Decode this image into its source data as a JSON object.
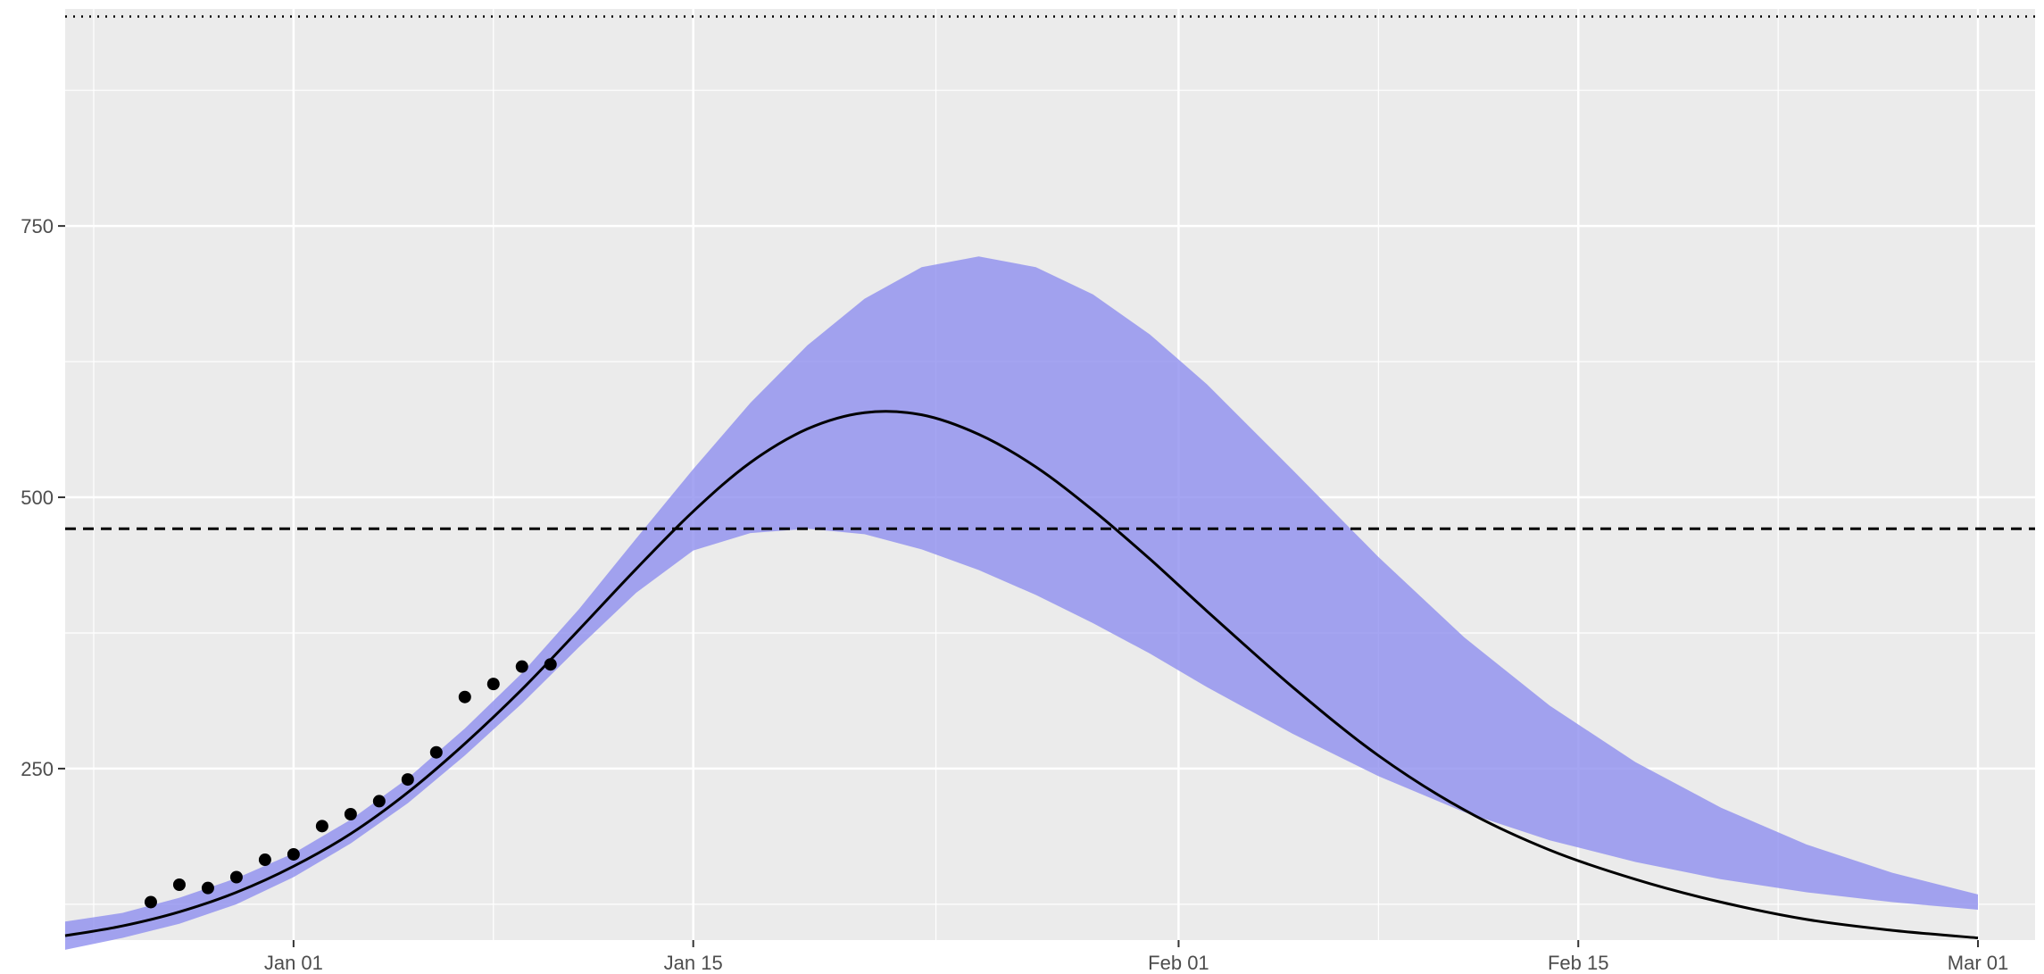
{
  "chart_data": {
    "type": "line",
    "title": "",
    "xlabel": "",
    "ylabel": "",
    "xlim": [
      "2020-12-24",
      "2021-03-03"
    ],
    "ylim": [
      92,
      950
    ],
    "x_ticks": [
      {
        "date": "2021-01-01",
        "label": "Jan 01"
      },
      {
        "date": "2021-01-15",
        "label": "Jan 15"
      },
      {
        "date": "2021-02-01",
        "label": "Feb 01"
      },
      {
        "date": "2021-02-15",
        "label": "Feb 15"
      },
      {
        "date": "2021-03-01",
        "label": "Mar 01"
      }
    ],
    "y_ticks": [
      250,
      500,
      750
    ],
    "y_minor_ticks": [
      125,
      375,
      625,
      875
    ],
    "background_color": "#ebebeb",
    "grid_color": "#ffffff",
    "ribbon_color": "#8f8fef",
    "line_color": "#000000",
    "hline_dashed": 471,
    "hline_dotted": 943,
    "series": [
      {
        "kind": "fitted",
        "points": [
          [
            "2020-12-24",
            96
          ],
          [
            "2020-12-26",
            105
          ],
          [
            "2020-12-28",
            118
          ],
          [
            "2020-12-30",
            136
          ],
          [
            "2021-01-01",
            160
          ],
          [
            "2021-01-03",
            190
          ],
          [
            "2021-01-05",
            228
          ],
          [
            "2021-01-07",
            273
          ],
          [
            "2021-01-09",
            323
          ],
          [
            "2021-01-11",
            378
          ],
          [
            "2021-01-13",
            434
          ],
          [
            "2021-01-15",
            487
          ],
          [
            "2021-01-17",
            532
          ],
          [
            "2021-01-19",
            563
          ],
          [
            "2021-01-21",
            578
          ],
          [
            "2021-01-23",
            576
          ],
          [
            "2021-01-25",
            558
          ],
          [
            "2021-01-27",
            528
          ],
          [
            "2021-01-29",
            488
          ],
          [
            "2021-01-31",
            443
          ],
          [
            "2021-02-02",
            395
          ],
          [
            "2021-02-05",
            325
          ],
          [
            "2021-02-08",
            262
          ],
          [
            "2021-02-11",
            212
          ],
          [
            "2021-02-14",
            175
          ],
          [
            "2021-02-17",
            148
          ],
          [
            "2021-02-20",
            127
          ],
          [
            "2021-02-23",
            111
          ],
          [
            "2021-02-26",
            101
          ],
          [
            "2021-03-01",
            94
          ]
        ]
      },
      {
        "kind": "ribbon",
        "lower": [
          [
            "2020-12-24",
            83
          ],
          [
            "2020-12-26",
            94
          ],
          [
            "2020-12-28",
            107
          ],
          [
            "2020-12-30",
            125
          ],
          [
            "2021-01-01",
            150
          ],
          [
            "2021-01-03",
            181
          ],
          [
            "2021-01-05",
            218
          ],
          [
            "2021-01-07",
            262
          ],
          [
            "2021-01-09",
            310
          ],
          [
            "2021-01-11",
            362
          ],
          [
            "2021-01-13",
            412
          ],
          [
            "2021-01-15",
            451
          ],
          [
            "2021-01-17",
            467
          ],
          [
            "2021-01-19",
            471
          ],
          [
            "2021-01-21",
            466
          ],
          [
            "2021-01-23",
            452
          ],
          [
            "2021-01-25",
            433
          ],
          [
            "2021-01-27",
            410
          ],
          [
            "2021-01-29",
            384
          ],
          [
            "2021-01-31",
            356
          ],
          [
            "2021-02-02",
            325
          ],
          [
            "2021-02-05",
            282
          ],
          [
            "2021-02-08",
            243
          ],
          [
            "2021-02-11",
            210
          ],
          [
            "2021-02-14",
            184
          ],
          [
            "2021-02-17",
            164
          ],
          [
            "2021-02-20",
            148
          ],
          [
            "2021-02-23",
            136
          ],
          [
            "2021-02-26",
            127
          ],
          [
            "2021-03-01",
            120
          ]
        ],
        "upper": [
          [
            "2020-12-24",
            109
          ],
          [
            "2020-12-26",
            117
          ],
          [
            "2020-12-28",
            131
          ],
          [
            "2020-12-30",
            149
          ],
          [
            "2021-01-01",
            172
          ],
          [
            "2021-01-03",
            203
          ],
          [
            "2021-01-05",
            241
          ],
          [
            "2021-01-07",
            287
          ],
          [
            "2021-01-09",
            338
          ],
          [
            "2021-01-11",
            397
          ],
          [
            "2021-01-13",
            462
          ],
          [
            "2021-01-15",
            526
          ],
          [
            "2021-01-17",
            587
          ],
          [
            "2021-01-19",
            640
          ],
          [
            "2021-01-21",
            683
          ],
          [
            "2021-01-23",
            712
          ],
          [
            "2021-01-25",
            722
          ],
          [
            "2021-01-27",
            712
          ],
          [
            "2021-01-29",
            687
          ],
          [
            "2021-01-31",
            650
          ],
          [
            "2021-02-02",
            604
          ],
          [
            "2021-02-05",
            525
          ],
          [
            "2021-02-08",
            445
          ],
          [
            "2021-02-11",
            371
          ],
          [
            "2021-02-14",
            308
          ],
          [
            "2021-02-17",
            256
          ],
          [
            "2021-02-20",
            214
          ],
          [
            "2021-02-23",
            180
          ],
          [
            "2021-02-26",
            154
          ],
          [
            "2021-03-01",
            134
          ]
        ]
      },
      {
        "kind": "observed",
        "points": [
          [
            "2020-12-27",
            127
          ],
          [
            "2020-12-28",
            143
          ],
          [
            "2020-12-29",
            140
          ],
          [
            "2020-12-30",
            150
          ],
          [
            "2020-12-31",
            166
          ],
          [
            "2021-01-01",
            171
          ],
          [
            "2021-01-02",
            197
          ],
          [
            "2021-01-03",
            208
          ],
          [
            "2021-01-04",
            220
          ],
          [
            "2021-01-05",
            240
          ],
          [
            "2021-01-06",
            265
          ],
          [
            "2021-01-07",
            316
          ],
          [
            "2021-01-08",
            328
          ],
          [
            "2021-01-09",
            344
          ],
          [
            "2021-01-10",
            346
          ]
        ]
      }
    ]
  }
}
